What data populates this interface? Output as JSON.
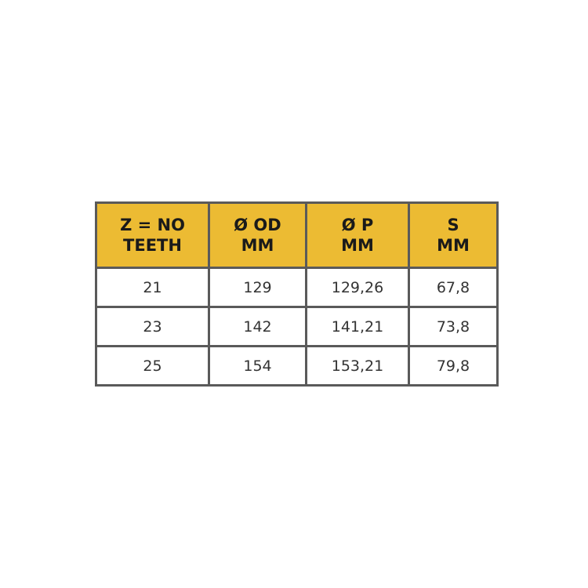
{
  "table": {
    "headers": [
      [
        "Z = NO",
        "TEETH"
      ],
      [
        "Ø OD",
        "MM"
      ],
      [
        "Ø P",
        "MM"
      ],
      [
        "S",
        "MM"
      ]
    ],
    "rows": [
      [
        "21",
        "129",
        "129,26",
        "67,8"
      ],
      [
        "23",
        "142",
        "141,21",
        "73,8"
      ],
      [
        "25",
        "154",
        "153,21",
        "79,8"
      ]
    ],
    "colors": {
      "header_bg": "#ecbb33",
      "border": "#5a5a5a"
    }
  }
}
